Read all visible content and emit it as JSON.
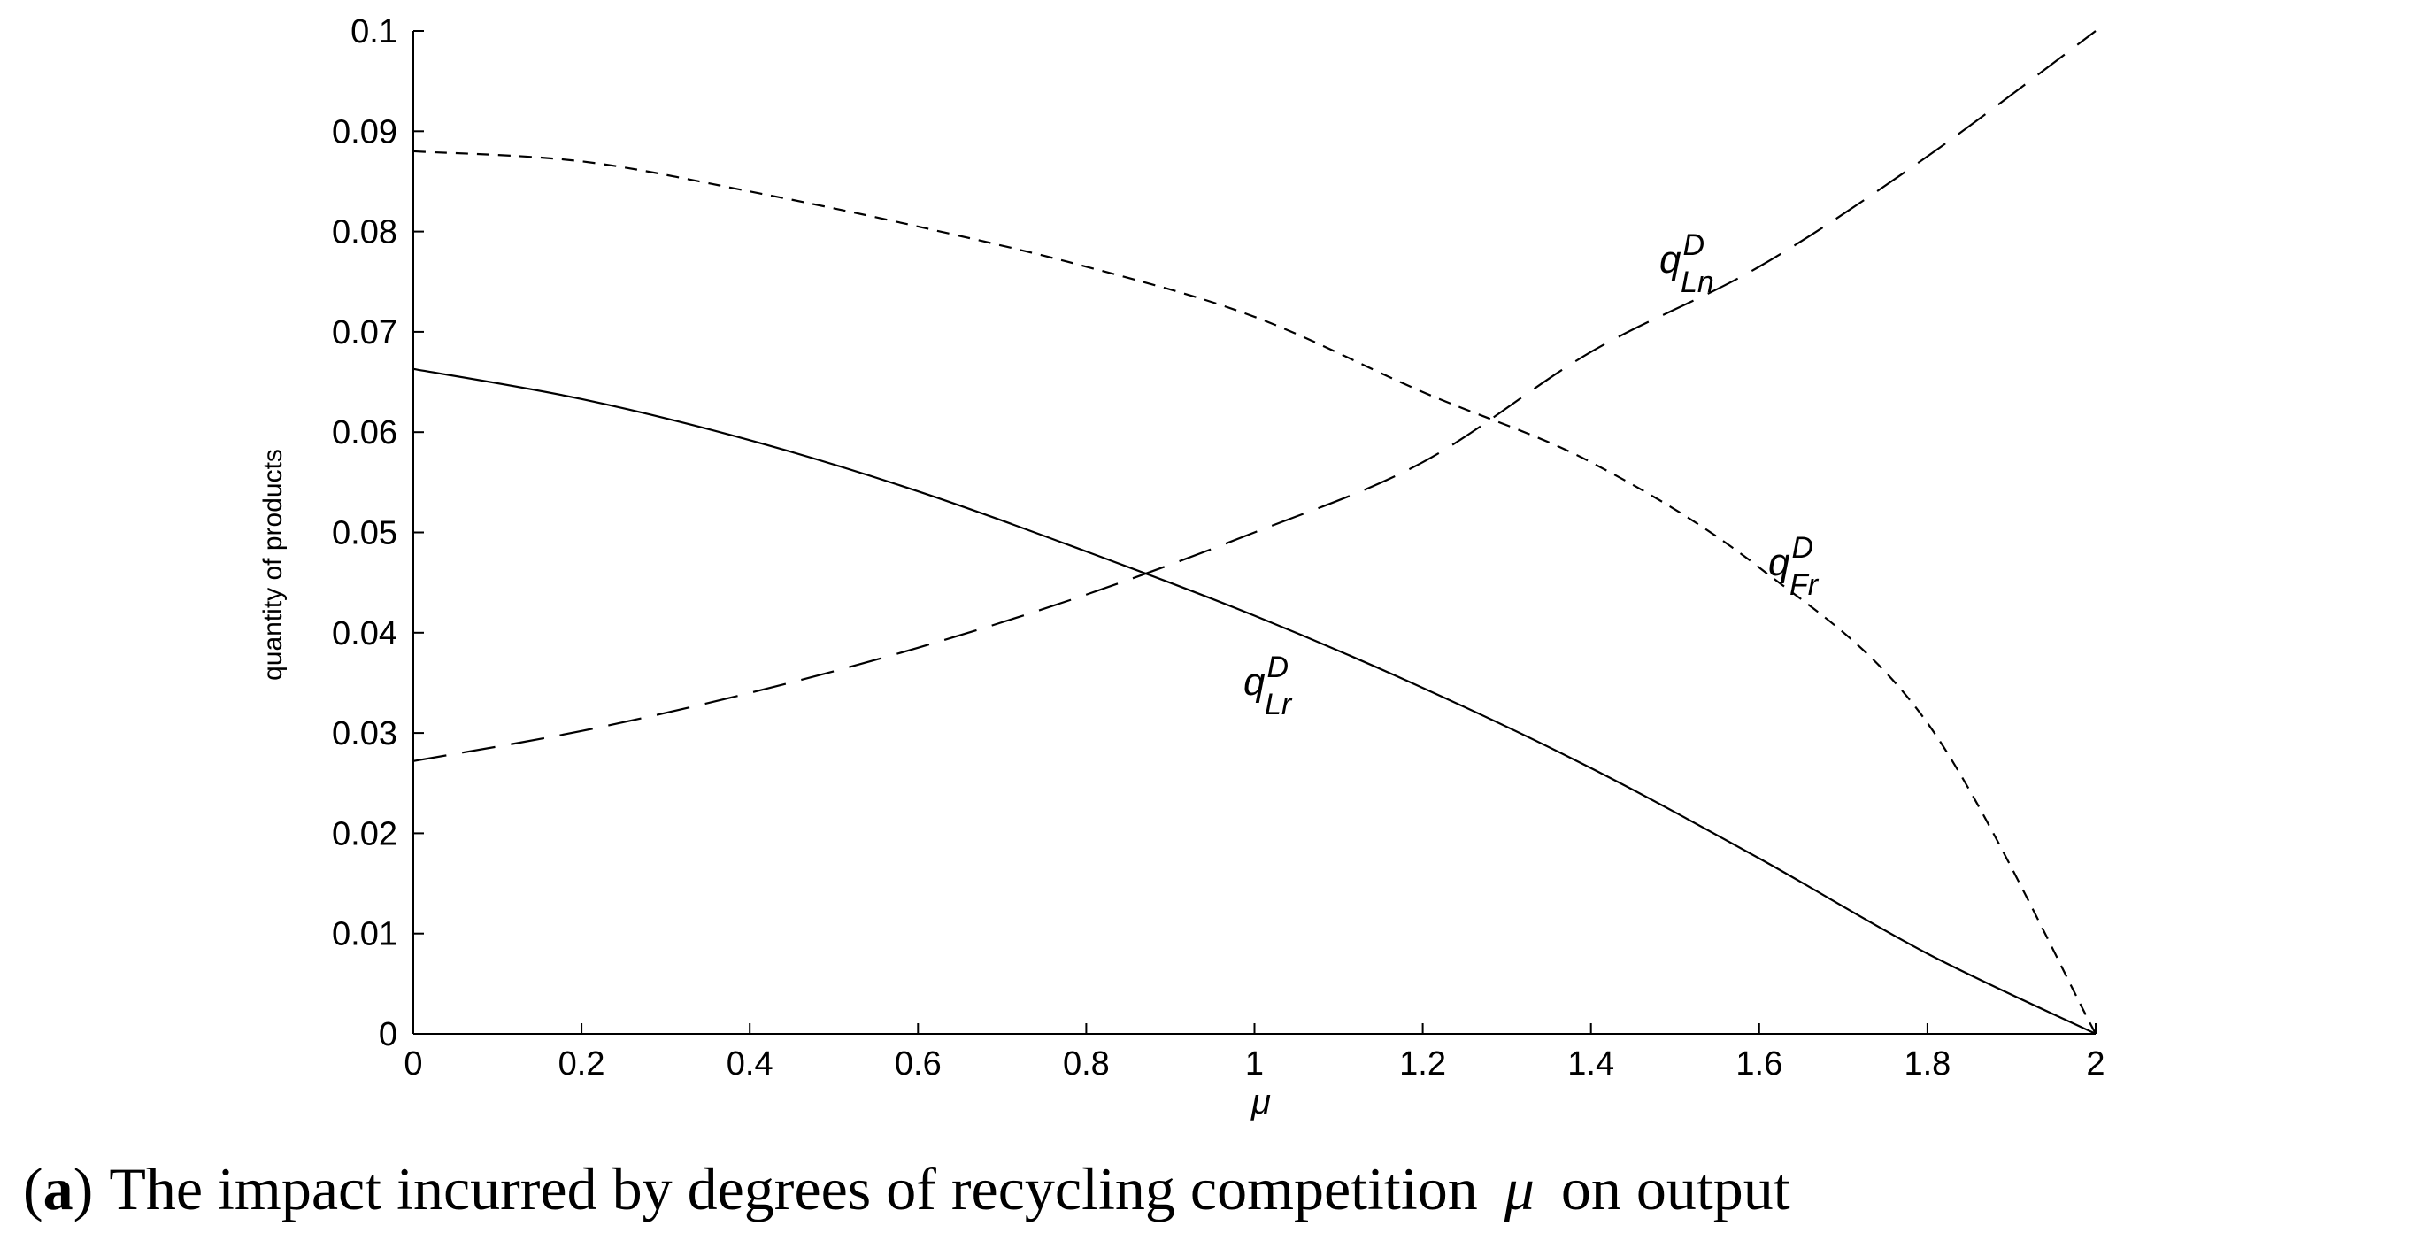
{
  "chart_data": {
    "type": "line",
    "title": "",
    "xlabel": "μ",
    "ylabel": "quantity of products",
    "xlim": [
      0,
      2
    ],
    "ylim": [
      0,
      0.1
    ],
    "grid": false,
    "xticks": [
      "0",
      "0.2",
      "0.4",
      "0.6",
      "0.8",
      "1",
      "1.2",
      "1.4",
      "1.6",
      "1.8",
      "2"
    ],
    "yticks": [
      "0",
      "0.01",
      "0.02",
      "0.03",
      "0.04",
      "0.05",
      "0.06",
      "0.07",
      "0.08",
      "0.09",
      "0.1"
    ],
    "x": [
      0,
      0.2,
      0.4,
      0.6,
      0.8,
      1.0,
      1.2,
      1.4,
      1.6,
      1.8,
      2.0
    ],
    "series": [
      {
        "name_base": "q",
        "name_sup": "D",
        "name_sub": "Lr",
        "style": "solid",
        "values": [
          0.0663,
          0.0633,
          0.0592,
          0.0541,
          0.0481,
          0.0417,
          0.0345,
          0.0265,
          0.0175,
          0.008,
          0.0
        ]
      },
      {
        "name_base": "q",
        "name_sup": "D",
        "name_sub": "Fr",
        "style": "short-dash",
        "values": [
          0.088,
          0.087,
          0.084,
          0.0805,
          0.0765,
          0.0715,
          0.064,
          0.057,
          0.0465,
          0.031,
          0.0
        ]
      },
      {
        "name_base": "q",
        "name_sup": "D",
        "name_sub": "Ln",
        "style": "long-dash",
        "values": [
          0.0272,
          0.0302,
          0.034,
          0.0385,
          0.0438,
          0.05,
          0.057,
          0.068,
          0.0765,
          0.0875,
          0.1
        ]
      }
    ]
  },
  "caption": {
    "prefix_open": "(",
    "prefix_letter": "a",
    "prefix_close": ")",
    "text": "The impact incurred by degrees of recycling competition",
    "symbol": "μ",
    "suffix": "on output"
  }
}
